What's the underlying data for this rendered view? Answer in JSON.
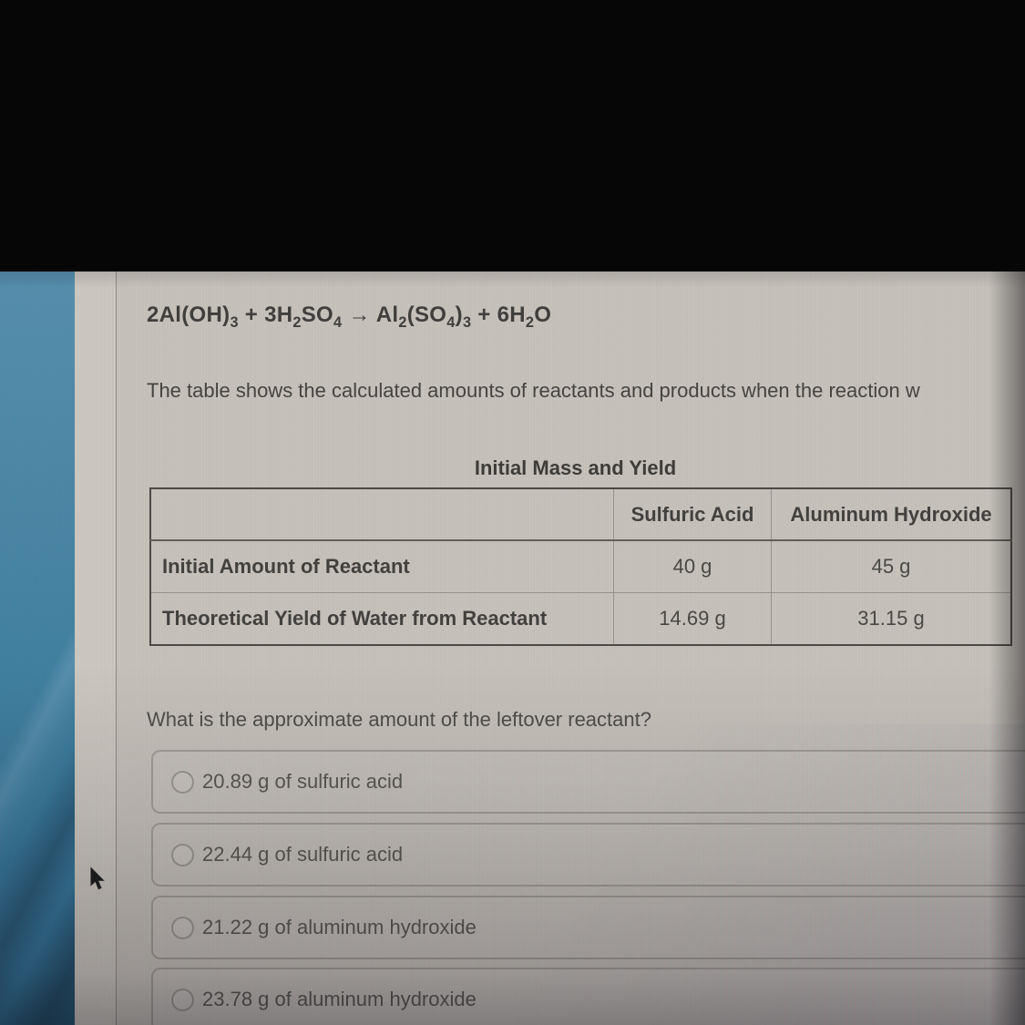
{
  "page": {
    "equation_parts": [
      {
        "text": "2Al(OH)"
      },
      {
        "sub": "3"
      },
      {
        "text": " + 3H"
      },
      {
        "sub": "2"
      },
      {
        "text": "SO"
      },
      {
        "sub": "4"
      },
      {
        "text": " → Al"
      },
      {
        "sub": "2"
      },
      {
        "text": "(SO"
      },
      {
        "sub": "4"
      },
      {
        "text": ")"
      },
      {
        "sub": "3"
      },
      {
        "text": " + 6H"
      },
      {
        "sub": "2"
      },
      {
        "text": "O"
      }
    ],
    "intro_text": "The table shows the calculated amounts of reactants and products when the reaction w",
    "table": {
      "title": "Initial Mass and Yield",
      "columns": [
        "",
        "Sulfuric Acid",
        "Aluminum Hydroxide"
      ],
      "rows": [
        {
          "label": "Initial Amount of Reactant",
          "values": [
            "40 g",
            "45 g"
          ]
        },
        {
          "label": "Theoretical Yield of Water from Reactant",
          "values": [
            "14.69 g",
            "31.15 g"
          ]
        }
      ]
    },
    "question": "What is the approximate amount of the leftover reactant?",
    "options": [
      {
        "label": "20.89 g of sulfuric acid",
        "selected": false
      },
      {
        "label": "22.44 g of sulfuric acid",
        "selected": false
      },
      {
        "label": "21.22 g of aluminum hydroxide",
        "selected": false
      },
      {
        "label": "23.78 g of aluminum hydroxide",
        "selected": false
      }
    ]
  },
  "colors": {
    "wallpaper_teal": "#3b7d9e",
    "page_background": "#c5c1b9",
    "letterbox_black": "#060606",
    "text_dark": "#3b3a37",
    "text_muted": "#55534d",
    "table_border": "#474540",
    "option_border": "#7a766d"
  }
}
